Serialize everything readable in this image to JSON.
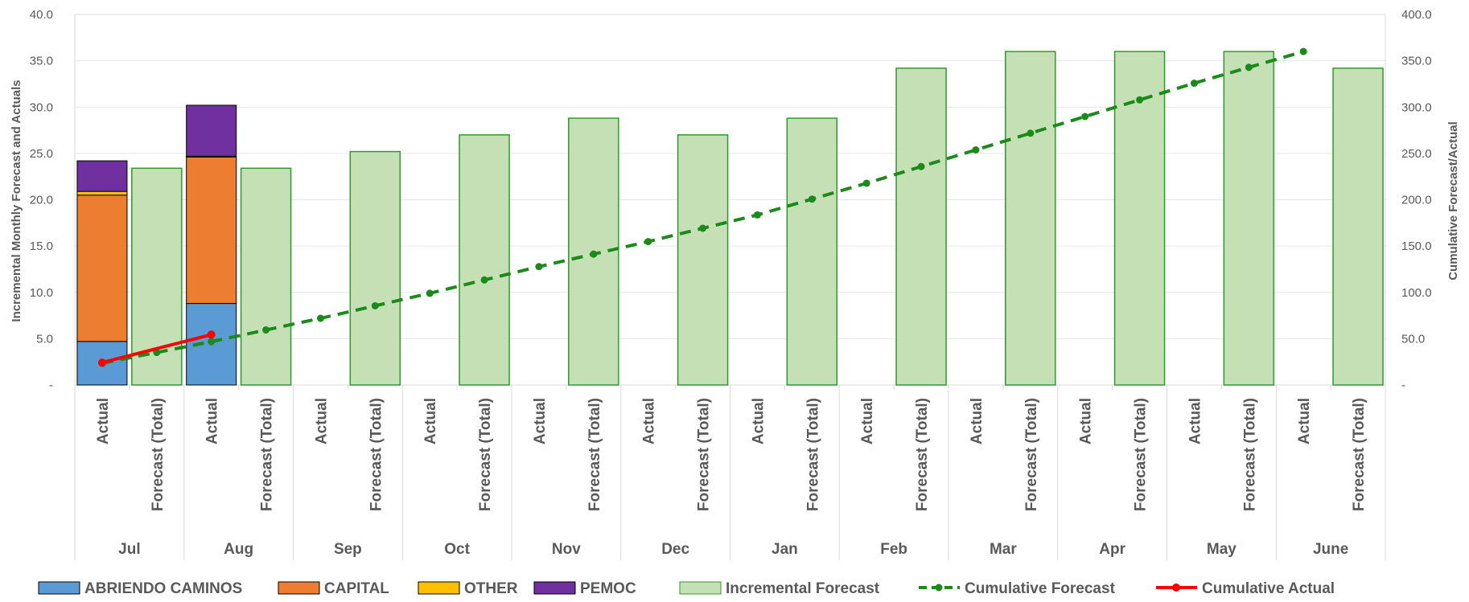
{
  "chart_data": {
    "type": "bar",
    "ylabel": "Incremental Monthly Forecast and Actuals",
    "y2label": "Cumulative Forecast/Actual",
    "ylim": [
      0,
      40
    ],
    "y2lim": [
      0,
      400
    ],
    "y_ticks": [
      "-",
      "5.0",
      "10.0",
      "15.0",
      "20.0",
      "25.0",
      "30.0",
      "35.0",
      "40.0"
    ],
    "y2_ticks": [
      "-",
      "50.0",
      "100.0",
      "150.0",
      "200.0",
      "250.0",
      "300.0",
      "350.0",
      "400.0"
    ],
    "months": [
      "Jul",
      "Aug",
      "Sep",
      "Oct",
      "Nov",
      "Dec",
      "Jan",
      "Feb",
      "Mar",
      "Apr",
      "May",
      "June"
    ],
    "sub_categories": [
      "Actual",
      "Forecast (Total)"
    ],
    "legend_position": "bottom",
    "grid": true,
    "actual_series": [
      {
        "name": "ABRIENDO CAMINOS",
        "color": "#5B9BD5",
        "values": [
          4.7,
          8.8,
          null,
          null,
          null,
          null,
          null,
          null,
          null,
          null,
          null,
          null
        ]
      },
      {
        "name": "CAPITAL",
        "color": "#ED7D31",
        "values": [
          15.8,
          15.8,
          null,
          null,
          null,
          null,
          null,
          null,
          null,
          null,
          null,
          null
        ]
      },
      {
        "name": "OTHER",
        "color": "#FFC000",
        "values": [
          0.4,
          0.1,
          null,
          null,
          null,
          null,
          null,
          null,
          null,
          null,
          null,
          null
        ]
      },
      {
        "name": "PEMOC",
        "color": "#7030A0",
        "values": [
          3.3,
          5.5,
          null,
          null,
          null,
          null,
          null,
          null,
          null,
          null,
          null,
          null
        ]
      }
    ],
    "forecast_series": {
      "name": "Incremental Forecast",
      "color": "#C5E0B4",
      "border": "#2E9A2E",
      "values": [
        23.4,
        23.4,
        25.2,
        27.0,
        28.8,
        27.0,
        28.8,
        34.2,
        36.0,
        36.0,
        36.0,
        34.2
      ]
    },
    "cumulative_forecast": {
      "name": "Cumulative Forecast",
      "color": "#1A8A1A",
      "axis": "secondary",
      "values": [
        23.4,
        35.1,
        46.8,
        59.4,
        72.0,
        85.5,
        99.0,
        113.4,
        127.8,
        141.3,
        154.8,
        169.2,
        183.6,
        200.7,
        217.8,
        235.8,
        253.8,
        271.8,
        289.8,
        307.8,
        325.8,
        342.9,
        360.0
      ]
    },
    "cumulative_actual": {
      "name": "Cumulative Actual",
      "color": "#FF0000",
      "axis": "secondary",
      "values": [
        24.2,
        54.4
      ]
    }
  }
}
